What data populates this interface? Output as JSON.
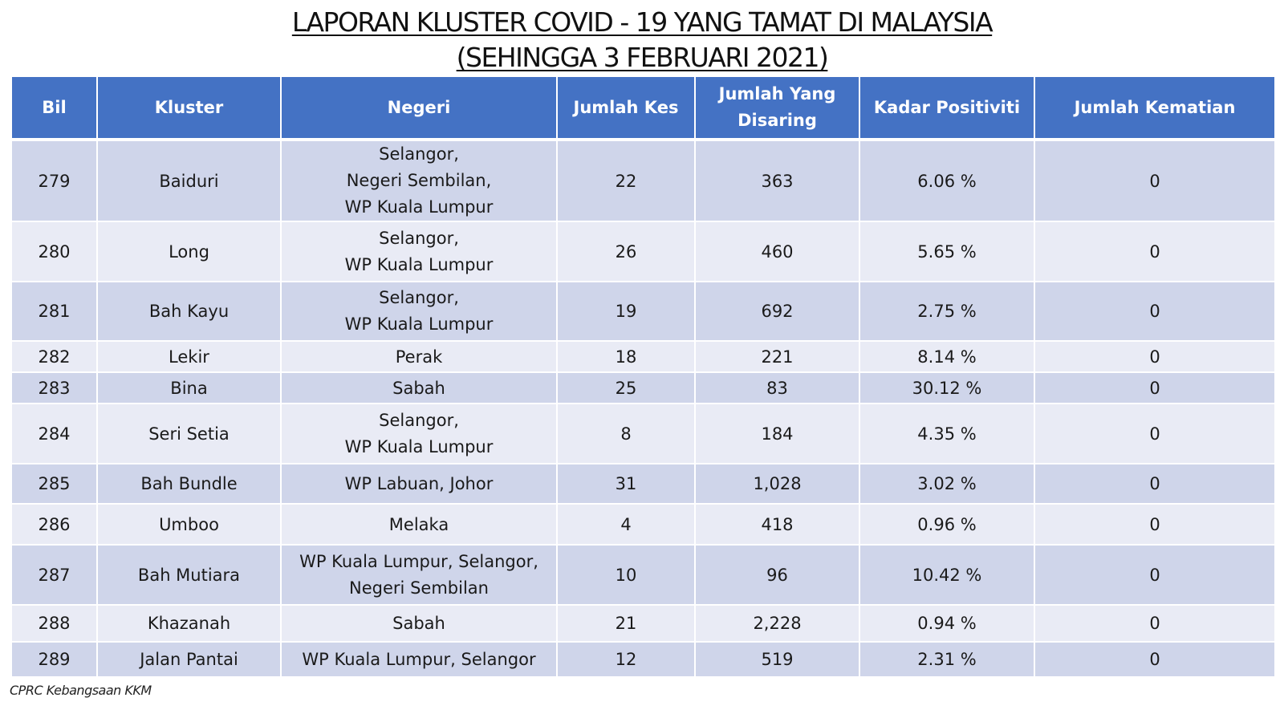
{
  "title": {
    "line1": "LAPORAN KLUSTER COVID - 19 YANG TAMAT DI MALAYSIA",
    "line2": "(SEHINGGA 3 FEBRUARI 2021)"
  },
  "table": {
    "headers": {
      "bil": "Bil",
      "kluster": "Kluster",
      "negeri": "Negeri",
      "jumlah_kes": "Jumlah Kes",
      "jumlah_disaring": "Jumlah Yang Disaring",
      "kadar_positiviti": "Kadar Positiviti",
      "jumlah_kematian": "Jumlah Kematian"
    },
    "rows": [
      {
        "bil": "279",
        "kluster": "Baiduri",
        "negeri": "Selangor,\nNegeri Sembilan,\nWP Kuala Lumpur",
        "kes": "22",
        "disaring": "363",
        "positiviti": "6.06 %",
        "kematian": "0"
      },
      {
        "bil": "280",
        "kluster": "Long",
        "negeri": "Selangor,\nWP Kuala Lumpur",
        "kes": "26",
        "disaring": "460",
        "positiviti": "5.65 %",
        "kematian": "0"
      },
      {
        "bil": "281",
        "kluster": "Bah Kayu",
        "negeri": "Selangor,\nWP Kuala Lumpur",
        "kes": "19",
        "disaring": "692",
        "positiviti": "2.75 %",
        "kematian": "0"
      },
      {
        "bil": "282",
        "kluster": "Lekir",
        "negeri": "Perak",
        "kes": "18",
        "disaring": "221",
        "positiviti": "8.14 %",
        "kematian": "0"
      },
      {
        "bil": "283",
        "kluster": "Bina",
        "negeri": "Sabah",
        "kes": "25",
        "disaring": "83",
        "positiviti": "30.12 %",
        "kematian": "0"
      },
      {
        "bil": "284",
        "kluster": "Seri Setia",
        "negeri": "Selangor,\nWP Kuala Lumpur",
        "kes": "8",
        "disaring": "184",
        "positiviti": "4.35 %",
        "kematian": "0"
      },
      {
        "bil": "285",
        "kluster": "Bah Bundle",
        "negeri": "WP Labuan, Johor",
        "kes": "31",
        "disaring": "1,028",
        "positiviti": "3.02 %",
        "kematian": "0"
      },
      {
        "bil": "286",
        "kluster": "Umboo",
        "negeri": "Melaka",
        "kes": "4",
        "disaring": "418",
        "positiviti": "0.96 %",
        "kematian": "0"
      },
      {
        "bil": "287",
        "kluster": "Bah Mutiara",
        "negeri": "WP Kuala Lumpur, Selangor,\nNegeri Sembilan",
        "kes": "10",
        "disaring": "96",
        "positiviti": "10.42 %",
        "kematian": "0"
      },
      {
        "bil": "288",
        "kluster": "Khazanah",
        "negeri": "Sabah",
        "kes": "21",
        "disaring": "2,228",
        "positiviti": "0.94 %",
        "kematian": "0"
      },
      {
        "bil": "289",
        "kluster": "Jalan Pantai",
        "negeri": "WP Kuala Lumpur, Selangor",
        "kes": "12",
        "disaring": "519",
        "positiviti": "2.31 %",
        "kematian": "0"
      }
    ]
  },
  "footer": {
    "source": "CPRC Kebangsaan KKM"
  },
  "colors": {
    "header_bg": "#4472c4",
    "row_dark": "#cfd5ea",
    "row_light": "#e9ebf5"
  }
}
